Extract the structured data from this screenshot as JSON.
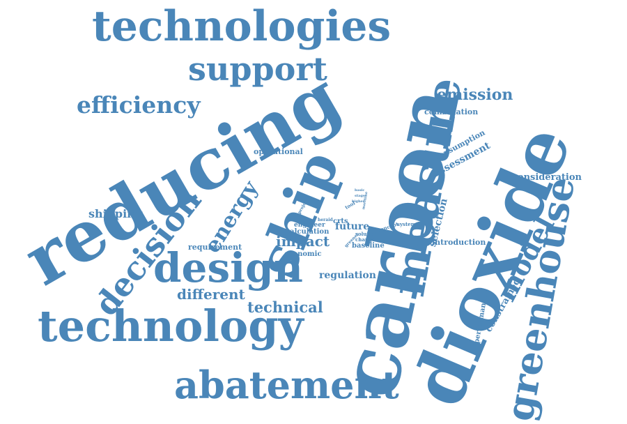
{
  "color": "#4a86b8",
  "words": {
    "carbon": "carbon",
    "dioxide": "dioxide",
    "reducing": "reducing",
    "measure": "measure",
    "ship": "ship",
    "technologies": "technologies",
    "technology": "technology",
    "abatement": "abatement",
    "greenhouse": "greenhouse",
    "design": "design",
    "decision": "decision",
    "support": "support",
    "efficiency": "efficiency",
    "model": "model",
    "energy": "energy",
    "emission": "emission",
    "impact": "impact",
    "different": "different",
    "technical": "technical",
    "regulation": "regulation",
    "assessment": "assessment",
    "shipping": "shipping",
    "consideration": "consideration",
    "selection": "selection",
    "constrained": "constrained",
    "future": "future",
    "consumption": "consumption",
    "combination": "combination",
    "introduction": "introduction",
    "operational": "operational",
    "requirement": "requirement",
    "calculation": "calculation",
    "economic": "economic",
    "baseline": "baseline",
    "performance": "performance",
    "engineer": "engineer",
    "crts": "crts",
    "solution": "solution",
    "change": "change",
    "system": "system",
    "concept": "concept",
    "project": "project",
    "tool": "tool",
    "greener": "greener",
    "basic": "basic",
    "stage": "stage",
    "higher": "higher",
    "heraid": "heraid",
    "maritime": "maritime"
  }
}
